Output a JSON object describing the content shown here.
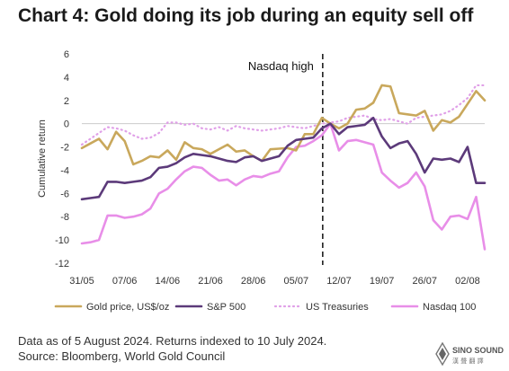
{
  "title": "Chart 4: Gold doing its job during an equity sell off",
  "footer": {
    "note": "Data as of 5 August 2024. Returns indexed to 10 July 2024.",
    "source": "Source: Bloomberg, World Gold Council"
  },
  "logo": {
    "line1": "SINO SOUND",
    "line2": "漢 聲 翻 譯"
  },
  "chart_data": {
    "type": "line",
    "title": "",
    "xlabel": "",
    "ylabel": "Cumulative return",
    "ylim": [
      -12,
      6
    ],
    "yticks": [
      6,
      4,
      2,
      0,
      -2,
      -4,
      -6,
      -8,
      -10,
      -12
    ],
    "xlim": [
      0,
      47
    ],
    "xticks": [
      {
        "pos": 0,
        "label": "31/05"
      },
      {
        "pos": 5,
        "label": "07/06"
      },
      {
        "pos": 10,
        "label": "14/06"
      },
      {
        "pos": 15,
        "label": "21/06"
      },
      {
        "pos": 20,
        "label": "28/06"
      },
      {
        "pos": 25,
        "label": "05/07"
      },
      {
        "pos": 30,
        "label": "12/07"
      },
      {
        "pos": 35,
        "label": "19/07"
      },
      {
        "pos": 40,
        "label": "26/07"
      },
      {
        "pos": 45,
        "label": "02/08"
      }
    ],
    "annotation": {
      "label": "Nasdaq high",
      "x": 28.1
    },
    "colors": {
      "gold": "#c9a85c",
      "sp500": "#5c3a7a",
      "treasuries": "#e0a0e8",
      "nasdaq": "#e88ee8",
      "zero_line": "#cccccc",
      "annotation_line": "#111111"
    },
    "x": [
      0,
      1,
      2,
      3,
      4,
      5,
      6,
      7,
      8,
      9,
      10,
      11,
      12,
      13,
      14,
      15,
      16,
      17,
      18,
      19,
      20,
      21,
      22,
      23,
      24,
      25,
      26,
      27,
      28,
      29,
      30,
      31,
      32,
      33,
      34,
      35,
      36,
      37,
      38,
      39,
      40,
      41,
      42,
      43,
      44,
      45,
      46,
      47
    ],
    "series": [
      {
        "name": "Gold price, US$/oz",
        "key": "gold",
        "style": "solid",
        "values": [
          -2.1,
          -1.7,
          -1.3,
          -2.2,
          -0.7,
          -1.5,
          -3.5,
          -3.2,
          -2.8,
          -2.9,
          -2.3,
          -3.1,
          -1.6,
          -2.1,
          -2.2,
          -2.6,
          -2.2,
          -1.8,
          -2.4,
          -2.3,
          -2.8,
          -3.2,
          -2.2,
          -2.15,
          -2.1,
          -2.3,
          -0.9,
          -0.9,
          0.5,
          0.0,
          -0.4,
          0.0,
          1.2,
          1.3,
          1.8,
          3.3,
          3.2,
          0.9,
          0.8,
          0.7,
          1.1,
          -0.6,
          0.3,
          0.1,
          0.6,
          1.7,
          2.8,
          2.0
        ]
      },
      {
        "name": "S&P 500",
        "key": "sp500",
        "style": "solid",
        "values": [
          -6.5,
          -6.4,
          -6.3,
          -5.0,
          -5.0,
          -5.1,
          -5.0,
          -4.9,
          -4.6,
          -3.8,
          -3.7,
          -3.4,
          -2.9,
          -2.6,
          -2.7,
          -2.8,
          -3.0,
          -3.2,
          -3.3,
          -2.9,
          -2.8,
          -3.2,
          -3.0,
          -2.8,
          -1.9,
          -1.4,
          -1.3,
          -1.2,
          -0.4,
          0.0,
          -0.9,
          -0.3,
          -0.2,
          -0.1,
          0.5,
          -1.1,
          -2.1,
          -1.7,
          -1.5,
          -2.6,
          -4.2,
          -3.0,
          -3.1,
          -3.0,
          -3.3,
          -2.0,
          -5.1,
          -5.1
        ]
      },
      {
        "name": "US Treasuries",
        "key": "treasuries",
        "style": "dotted",
        "values": [
          -1.8,
          -1.3,
          -0.8,
          -0.3,
          -0.4,
          -0.6,
          -1.0,
          -1.3,
          -1.2,
          -0.8,
          0.1,
          0.1,
          -0.1,
          0.0,
          -0.4,
          -0.5,
          -0.3,
          -0.6,
          -0.2,
          -0.4,
          -0.5,
          -0.6,
          -0.5,
          -0.4,
          -0.2,
          -0.3,
          -0.4,
          -0.2,
          0.0,
          0.1,
          0.2,
          0.5,
          0.6,
          0.7,
          0.4,
          0.3,
          0.4,
          0.2,
          0.0,
          0.5,
          0.6,
          0.7,
          0.8,
          1.1,
          1.6,
          2.2,
          3.3,
          3.3
        ]
      },
      {
        "name": "Nasdaq 100",
        "key": "nasdaq",
        "style": "solid",
        "values": [
          -10.3,
          -10.2,
          -10.0,
          -7.9,
          -7.9,
          -8.1,
          -8.0,
          -7.8,
          -7.3,
          -6.0,
          -5.6,
          -4.8,
          -4.1,
          -3.7,
          -3.8,
          -4.4,
          -4.9,
          -4.8,
          -5.3,
          -4.8,
          -4.5,
          -4.6,
          -4.3,
          -4.1,
          -2.9,
          -2.0,
          -1.9,
          -1.5,
          -1.0,
          0.0,
          -2.3,
          -1.5,
          -1.4,
          -1.6,
          -1.8,
          -4.2,
          -4.9,
          -5.5,
          -5.1,
          -4.2,
          -5.4,
          -8.3,
          -9.1,
          -8.0,
          -7.9,
          -8.2,
          -6.3,
          -10.8
        ]
      }
    ],
    "legend": {
      "placement": "bottom"
    }
  }
}
